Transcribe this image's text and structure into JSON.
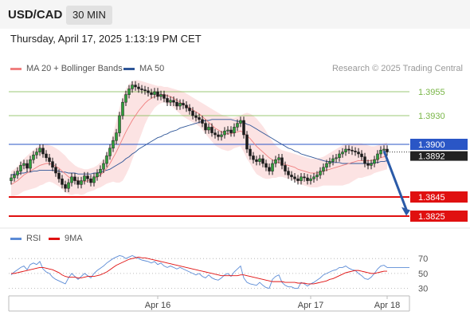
{
  "header": {
    "symbol": "USD/CAD",
    "timeframe": "30 MIN"
  },
  "datetime": "Thursday, April 17, 2025 1:13:19 PM CET",
  "copyright": "Research © 2025 Trading Central",
  "legend": [
    {
      "label": "MA 20 + Bollinger Bands",
      "color": "#f08080"
    },
    {
      "label": "MA 50",
      "color": "#2e5597"
    }
  ],
  "rsi_legend": [
    {
      "label": "RSI",
      "color": "#5b8bd6"
    },
    {
      "label": "9MA",
      "color": "#e01010"
    }
  ],
  "chart_data": {
    "type": "candlestick",
    "y_range": [
      1.3815,
      1.397
    ],
    "x_ticks": [
      {
        "label": "Apr 16",
        "index": 46
      },
      {
        "label": "Apr 17",
        "index": 94
      },
      {
        "label": "Apr 18",
        "index": 118
      }
    ],
    "levels": [
      {
        "price": 1.3955,
        "label": "1.3955",
        "color": "#7ab648",
        "kind": "resistance"
      },
      {
        "price": 1.393,
        "label": "1.3930",
        "color": "#7ab648",
        "kind": "resistance"
      },
      {
        "price": 1.39,
        "label": "1.3900",
        "color": "#2a56c6",
        "kind": "pivot"
      },
      {
        "price": 1.3845,
        "label": "1.3845",
        "color": "#e01010",
        "kind": "support"
      },
      {
        "price": 1.3825,
        "label": "1.3825",
        "color": "#e01010",
        "kind": "support"
      }
    ],
    "last_price": {
      "price": 1.3892,
      "label": "1.3892"
    },
    "forecast_arrow": {
      "from_index": 117,
      "from_price": 1.3893,
      "to_index": 124,
      "to_price": 1.3827
    },
    "close": [
      1.3865,
      1.3868,
      1.3872,
      1.3878,
      1.388,
      1.3875,
      1.3884,
      1.3889,
      1.3892,
      1.3896,
      1.389,
      1.3886,
      1.3882,
      1.3876,
      1.387,
      1.3864,
      1.3858,
      1.3854,
      1.386,
      1.3866,
      1.3862,
      1.3858,
      1.3862,
      1.3867,
      1.3864,
      1.386,
      1.3866,
      1.387,
      1.3874,
      1.388,
      1.3888,
      1.3896,
      1.3904,
      1.3912,
      1.393,
      1.3944,
      1.3952,
      1.3958,
      1.3962,
      1.396,
      1.3958,
      1.3957,
      1.3956,
      1.3954,
      1.3952,
      1.3955,
      1.395,
      1.3952,
      1.3948,
      1.3944,
      1.3946,
      1.3944,
      1.394,
      1.3943,
      1.3941,
      1.3938,
      1.3935,
      1.393,
      1.3928,
      1.3926,
      1.3922,
      1.3915,
      1.3918,
      1.3912,
      1.391,
      1.3908,
      1.391,
      1.3914,
      1.3915,
      1.3912,
      1.3918,
      1.3922,
      1.3925,
      1.391,
      1.3895,
      1.3888,
      1.3884,
      1.3882,
      1.3885,
      1.388,
      1.3876,
      1.3872,
      1.388,
      1.3884,
      1.3886,
      1.3878,
      1.3872,
      1.3868,
      1.3866,
      1.3864,
      1.3862,
      1.3866,
      1.3865,
      1.3862,
      1.3864,
      1.3866,
      1.3868,
      1.3872,
      1.3876,
      1.388,
      1.3882,
      1.3885,
      1.3886,
      1.389,
      1.3892,
      1.3895,
      1.3894,
      1.3893,
      1.3892,
      1.389,
      1.3887,
      1.388,
      1.3878,
      1.388,
      1.3884,
      1.389,
      1.3894,
      1.3895,
      1.3892
    ],
    "ma20": [
      1.3858,
      1.386,
      1.3862,
      1.3865,
      1.3868,
      1.387,
      1.3872,
      1.3874,
      1.3876,
      1.3878,
      1.3879,
      1.388,
      1.388,
      1.3879,
      1.3877,
      1.3875,
      1.3872,
      1.3869,
      1.3866,
      1.3864,
      1.3863,
      1.3862,
      1.3861,
      1.3861,
      1.3862,
      1.3863,
      1.3864,
      1.3866,
      1.3868,
      1.3871,
      1.3875,
      1.388,
      1.3886,
      1.3892,
      1.3899,
      1.3906,
      1.3913,
      1.3919,
      1.3925,
      1.393,
      1.3935,
      1.3939,
      1.3943,
      1.3946,
      1.3948,
      1.395,
      1.3951,
      1.3952,
      1.3952,
      1.3951,
      1.395,
      1.3948,
      1.3946,
      1.3944,
      1.3942,
      1.394,
      1.3938,
      1.3936,
      1.3934,
      1.3932,
      1.3929,
      1.3926,
      1.3923,
      1.392,
      1.3917,
      1.3915,
      1.3913,
      1.3912,
      1.3911,
      1.3911,
      1.3912,
      1.3913,
      1.3914,
      1.3912,
      1.3909,
      1.3906,
      1.3902,
      1.3898,
      1.3895,
      1.3892,
      1.3889,
      1.3886,
      1.3884,
      1.3882,
      1.3881,
      1.388,
      1.3879,
      1.3878,
      1.3877,
      1.3876,
      1.3874,
      1.3873,
      1.3872,
      1.3871,
      1.387,
      1.387,
      1.387,
      1.3871,
      1.3872,
      1.3873,
      1.3874,
      1.3875,
      1.3876,
      1.3877,
      1.3878,
      1.3879,
      1.388,
      1.3881,
      1.3882,
      1.3883,
      1.3883,
      1.3883,
      1.3883,
      1.3883,
      1.3884,
      1.3885,
      1.3886,
      1.3887,
      1.3888
    ],
    "bb_upper": [
      1.3872,
      1.3874,
      1.3877,
      1.3881,
      1.3885,
      1.3888,
      1.3891,
      1.3894,
      1.3897,
      1.3899,
      1.39,
      1.39,
      1.3899,
      1.3898,
      1.3896,
      1.3894,
      1.3891,
      1.3888,
      1.3884,
      1.3881,
      1.3878,
      1.3876,
      1.3875,
      1.3874,
      1.3874,
      1.3875,
      1.3876,
      1.3878,
      1.3881,
      1.3885,
      1.3891,
      1.39,
      1.3911,
      1.3924,
      1.3938,
      1.395,
      1.3958,
      1.3963,
      1.3966,
      1.3967,
      1.3967,
      1.3966,
      1.3965,
      1.3964,
      1.3963,
      1.3962,
      1.3961,
      1.3961,
      1.396,
      1.396,
      1.3959,
      1.3958,
      1.3957,
      1.3956,
      1.3955,
      1.3953,
      1.3951,
      1.3949,
      1.3947,
      1.3945,
      1.3943,
      1.3941,
      1.3939,
      1.3937,
      1.3935,
      1.3933,
      1.3931,
      1.393,
      1.3929,
      1.3928,
      1.3928,
      1.3929,
      1.393,
      1.3932,
      1.3933,
      1.3932,
      1.393,
      1.3927,
      1.3923,
      1.3919,
      1.3914,
      1.3908,
      1.3903,
      1.3899,
      1.3896,
      1.3894,
      1.3893,
      1.3892,
      1.3891,
      1.389,
      1.3889,
      1.3888,
      1.3887,
      1.3886,
      1.3885,
      1.3885,
      1.3885,
      1.3886,
      1.3887,
      1.3889,
      1.3891,
      1.3893,
      1.3895,
      1.3897,
      1.3899,
      1.39,
      1.3901,
      1.3901,
      1.3901,
      1.3901,
      1.3901,
      1.39,
      1.3899,
      1.3898,
      1.3898,
      1.3899,
      1.39,
      1.3901,
      1.3902
    ],
    "bb_lower": [
      1.3844,
      1.3846,
      1.3847,
      1.3849,
      1.3851,
      1.3852,
      1.3853,
      1.3854,
      1.3855,
      1.3857,
      1.3858,
      1.386,
      1.3861,
      1.386,
      1.3858,
      1.3856,
      1.3853,
      1.385,
      1.3848,
      1.3847,
      1.3848,
      1.3848,
      1.3847,
      1.3848,
      1.385,
      1.3851,
      1.3852,
      1.3854,
      1.3855,
      1.3857,
      1.3859,
      1.386,
      1.3861,
      1.386,
      1.386,
      1.3862,
      1.3868,
      1.3875,
      1.3884,
      1.3893,
      1.3903,
      1.3912,
      1.3921,
      1.3928,
      1.3933,
      1.3938,
      1.3941,
      1.3943,
      1.3944,
      1.3942,
      1.3941,
      1.3938,
      1.3935,
      1.3932,
      1.3929,
      1.3927,
      1.3925,
      1.3923,
      1.3921,
      1.3919,
      1.3915,
      1.3911,
      1.3907,
      1.3903,
      1.3899,
      1.3897,
      1.3895,
      1.3894,
      1.3893,
      1.3894,
      1.3896,
      1.3897,
      1.3898,
      1.3892,
      1.3885,
      1.388,
      1.3874,
      1.3869,
      1.3867,
      1.3865,
      1.3864,
      1.3864,
      1.3865,
      1.3865,
      1.3866,
      1.3866,
      1.3865,
      1.3864,
      1.3863,
      1.3862,
      1.3859,
      1.3858,
      1.3857,
      1.3856,
      1.3855,
      1.3855,
      1.3855,
      1.3856,
      1.3857,
      1.3857,
      1.3857,
      1.3857,
      1.3857,
      1.3857,
      1.3857,
      1.3858,
      1.3859,
      1.3861,
      1.3863,
      1.3865,
      1.3865,
      1.3866,
      1.3867,
      1.3868,
      1.387,
      1.3871,
      1.3872,
      1.3873,
      1.3874
    ],
    "ma50": [
      1.3868,
      1.3869,
      1.3869,
      1.387,
      1.387,
      1.3871,
      1.3871,
      1.3872,
      1.3872,
      1.3873,
      1.3873,
      1.3873,
      1.3873,
      1.3873,
      1.3872,
      1.3872,
      1.3871,
      1.3871,
      1.387,
      1.387,
      1.387,
      1.3869,
      1.3869,
      1.3869,
      1.3869,
      1.3869,
      1.387,
      1.387,
      1.3871,
      1.3872,
      1.3873,
      1.3874,
      1.3876,
      1.3878,
      1.388,
      1.3882,
      1.3885,
      1.3887,
      1.389,
      1.3892,
      1.3895,
      1.3897,
      1.3899,
      1.3901,
      1.3903,
      1.3905,
      1.3907,
      1.3908,
      1.391,
      1.3911,
      1.3913,
      1.3914,
      1.3915,
      1.3917,
      1.3918,
      1.3919,
      1.392,
      1.3921,
      1.3922,
      1.3923,
      1.3924,
      1.3925,
      1.3925,
      1.3926,
      1.3926,
      1.3926,
      1.3926,
      1.3926,
      1.3926,
      1.3926,
      1.3925,
      1.3924,
      1.3924,
      1.3923,
      1.3921,
      1.392,
      1.3918,
      1.3916,
      1.3914,
      1.3912,
      1.391,
      1.3908,
      1.3906,
      1.3904,
      1.3902,
      1.39,
      1.3898,
      1.3896,
      1.3895,
      1.3893,
      1.3892,
      1.389,
      1.3889,
      1.3888,
      1.3887,
      1.3886,
      1.3885,
      1.3884,
      1.3883,
      1.3882,
      1.3882,
      1.3881,
      1.3881,
      1.3881,
      1.388,
      1.388,
      1.388,
      1.388,
      1.388,
      1.388,
      1.388,
      1.388,
      1.388,
      1.388,
      1.3881,
      1.3881,
      1.3882,
      1.3882,
      1.3883
    ],
    "rsi": {
      "ticks": [
        70,
        50,
        30
      ],
      "y_range": [
        22,
        82
      ],
      "rsi": [
        48,
        52,
        55,
        58,
        60,
        55,
        62,
        64,
        62,
        66,
        56,
        52,
        50,
        45,
        42,
        40,
        38,
        36,
        44,
        50,
        46,
        42,
        46,
        50,
        47,
        44,
        50,
        54,
        57,
        60,
        64,
        67,
        70,
        72,
        74,
        73,
        70,
        72,
        74,
        72,
        70,
        68,
        67,
        66,
        64,
        66,
        62,
        64,
        60,
        58,
        60,
        58,
        56,
        58,
        56,
        54,
        52,
        50,
        48,
        50,
        46,
        44,
        48,
        44,
        42,
        41,
        44,
        48,
        50,
        46,
        52,
        56,
        60,
        44,
        38,
        36,
        35,
        34,
        38,
        34,
        31,
        30,
        42,
        46,
        48,
        38,
        34,
        32,
        32,
        30,
        30,
        38,
        36,
        33,
        36,
        38,
        41,
        44,
        48,
        50,
        52,
        54,
        55,
        58,
        58,
        60,
        57,
        55,
        54,
        50,
        47,
        43,
        42,
        45,
        50,
        56,
        60,
        61,
        58
      ],
      "ma9": [
        50,
        50,
        51,
        52,
        53,
        54,
        55,
        56,
        57,
        58,
        58,
        57,
        56,
        55,
        53,
        51,
        48,
        46,
        45,
        45,
        45,
        44,
        44,
        45,
        46,
        46,
        46,
        47,
        48,
        50,
        52,
        55,
        58,
        61,
        63,
        65,
        67,
        69,
        70,
        71,
        72,
        71,
        71,
        70,
        69,
        68,
        67,
        66,
        65,
        64,
        63,
        62,
        61,
        60,
        59,
        58,
        57,
        56,
        55,
        54,
        53,
        52,
        51,
        50,
        49,
        48,
        47,
        47,
        47,
        47,
        47,
        47,
        48,
        48,
        47,
        46,
        45,
        44,
        43,
        42,
        41,
        40,
        39,
        39,
        39,
        39,
        38,
        38,
        38,
        38,
        37,
        37,
        37,
        36,
        36,
        36,
        37,
        38,
        39,
        40,
        42,
        43,
        45,
        47,
        49,
        51,
        52,
        53,
        54,
        54,
        53,
        52,
        51,
        50,
        50,
        51,
        52,
        53,
        53
      ]
    }
  }
}
